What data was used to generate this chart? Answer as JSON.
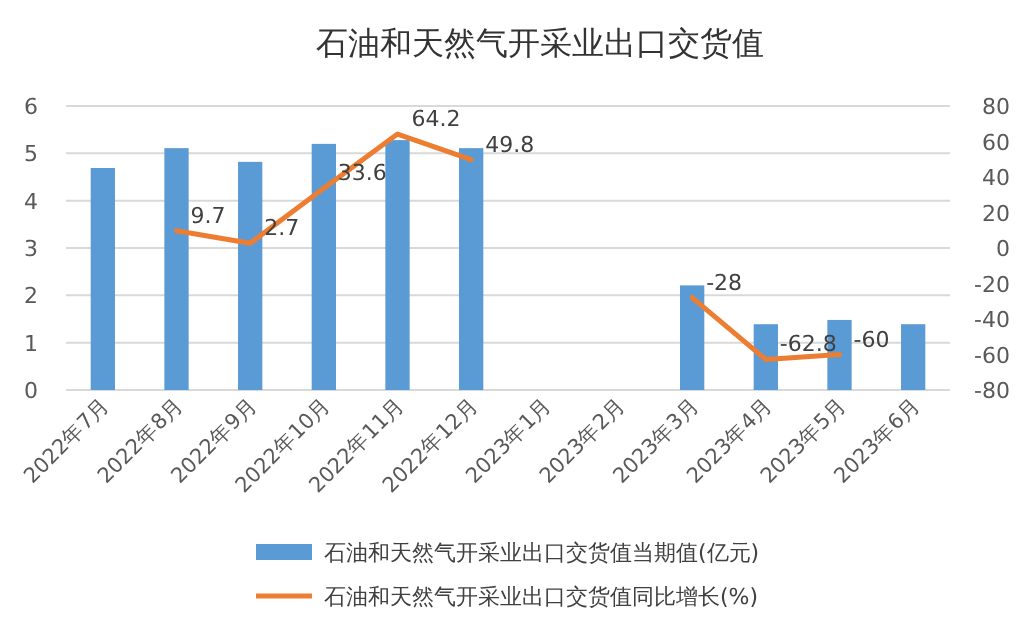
{
  "chart_data": {
    "type": "bar",
    "title": "石油和天然气开采业出口交货值",
    "categories": [
      "2022年7月",
      "2022年8月",
      "2022年9月",
      "2022年10月",
      "2022年11月",
      "2022年12月",
      "2023年1月",
      "2023年2月",
      "2023年3月",
      "2023年4月",
      "2023年5月",
      "2023年6月"
    ],
    "series": [
      {
        "name": "石油和天然气开采业出口交货值当期值(亿元)",
        "color": "#5b9bd5",
        "values": [
          4.69,
          5.11,
          4.82,
          5.2,
          5.28,
          5.11,
          null,
          null,
          2.21,
          1.39,
          1.48,
          1.39
        ]
      },
      {
        "name": "石油和天然气开采业出口交货值同比增长(%)",
        "type": "line",
        "axis": "y2",
        "color": "#ed7d31",
        "values": [
          null,
          9.7,
          2.7,
          33.6,
          64.2,
          49.8,
          null,
          null,
          -28,
          -62.8,
          -60,
          null
        ],
        "value_labels": [
          null,
          "9.7",
          "2.7",
          "33.6",
          "64.2",
          "49.8",
          null,
          null,
          "-28",
          "-62.8",
          "-60",
          null
        ]
      }
    ],
    "ylim": [
      0,
      6
    ],
    "yticks": [
      0,
      1,
      2,
      3,
      4,
      5,
      6
    ],
    "y2lim": [
      -80,
      80
    ],
    "y2ticks": [
      -80,
      -60,
      -40,
      -20,
      0,
      20,
      40,
      60,
      80
    ],
    "grid": "y",
    "legend": "bottom",
    "marker": "none",
    "line_style": "solid"
  }
}
